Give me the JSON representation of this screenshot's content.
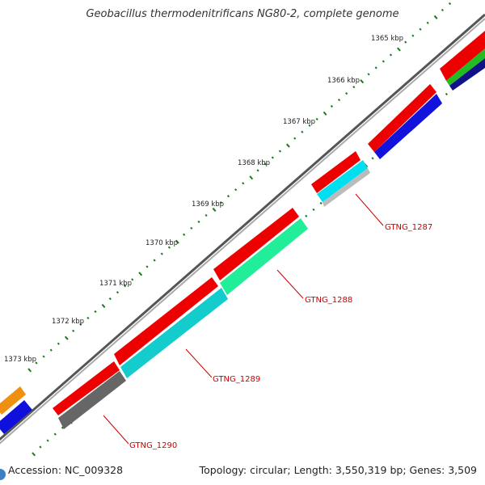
{
  "title": "Geobacillus thermodenitrificans NG80-2, complete genome",
  "footer": {
    "accession_label": "Accession:",
    "accession": "NC_009328",
    "topology_text": "Topology: circular; Length: 3,550,319 bp; Genes: 3,509"
  },
  "axis": {
    "unit": "kbp",
    "ticks": [
      1365,
      1366,
      1367,
      1368,
      1369,
      1370,
      1371,
      1372,
      1373
    ],
    "tick_labels": [
      "1365 kbp",
      "1366 kbp",
      "1367 kbp",
      "1368 kbp",
      "1369 kbp",
      "1370 kbp",
      "1371 kbp",
      "1372 kbp",
      "1373 kbp"
    ]
  },
  "genes": [
    {
      "label": "GTNG_1287",
      "feature_color": "#00e0f0",
      "start_kbp": 1366.7,
      "end_kbp": 1367.8
    },
    {
      "label": "GTNG_1288",
      "feature_color": "#22ee99",
      "start_kbp": 1368.1,
      "end_kbp": 1370.2
    },
    {
      "label": "GTNG_1289",
      "feature_color": "#11cccc",
      "start_kbp": 1370.3,
      "end_kbp": 1372.4
    },
    {
      "label": "GTNG_1290",
      "feature_color": "#666666",
      "start_kbp": 1372.5,
      "end_kbp": 1373.5
    }
  ],
  "colors": {
    "cds": "#ee0000",
    "label": "#cc0000",
    "tick": "#1a7a1a",
    "backbone": "#777777"
  },
  "partial_features": [
    "orange",
    "blue",
    "red",
    "green",
    "navy"
  ]
}
